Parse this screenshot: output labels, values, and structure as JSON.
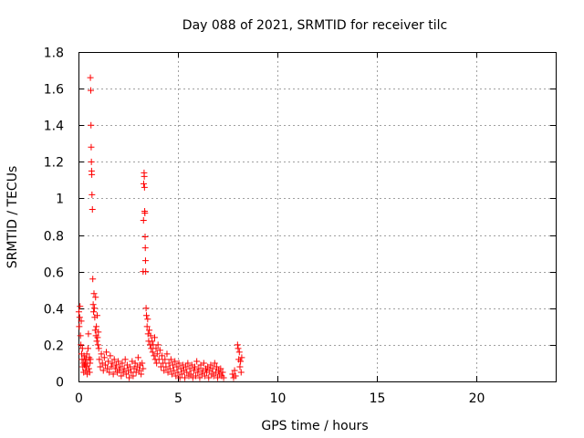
{
  "chart_data": {
    "type": "scatter",
    "title": "Day 088 of 2021, SRMTID for receiver tilc",
    "xlabel": "GPS time / hours",
    "ylabel": "SRMTID / TECUs",
    "xlim": [
      0,
      24
    ],
    "ylim": [
      0,
      1.8
    ],
    "xticks": [
      0,
      5,
      10,
      15,
      20
    ],
    "xtick_labels": [
      "0",
      "5",
      "10",
      "15",
      "20"
    ],
    "yticks": [
      0,
      0.2,
      0.4,
      0.6,
      0.8,
      1,
      1.2,
      1.4,
      1.6,
      1.8
    ],
    "ytick_labels": [
      "0",
      "0.2",
      "0.4",
      "0.6",
      "0.8",
      "1",
      "1.2",
      "1.4",
      "1.6",
      "1.8"
    ],
    "grid": true,
    "marker": "+",
    "series": [
      {
        "name": "tilc",
        "color": "#ff0000",
        "points": [
          [
            0.02,
            0.38
          ],
          [
            0.04,
            0.3
          ],
          [
            0.06,
            0.35
          ],
          [
            0.08,
            0.41
          ],
          [
            0.1,
            0.25
          ],
          [
            0.12,
            0.2
          ],
          [
            0.14,
            0.33
          ],
          [
            0.16,
            0.15
          ],
          [
            0.18,
            0.12
          ],
          [
            0.2,
            0.18
          ],
          [
            0.22,
            0.08
          ],
          [
            0.24,
            0.1
          ],
          [
            0.26,
            0.05
          ],
          [
            0.28,
            0.14
          ],
          [
            0.3,
            0.09
          ],
          [
            0.32,
            0.12
          ],
          [
            0.34,
            0.1
          ],
          [
            0.36,
            0.06
          ],
          [
            0.38,
            0.12
          ],
          [
            0.4,
            0.08
          ],
          [
            0.42,
            0.15
          ],
          [
            0.44,
            0.04
          ],
          [
            0.46,
            0.1
          ],
          [
            0.48,
            0.18
          ],
          [
            0.5,
            0.26
          ],
          [
            0.52,
            0.07
          ],
          [
            0.54,
            0.13
          ],
          [
            0.56,
            0.05
          ],
          [
            0.58,
            0.1
          ],
          [
            0.6,
            0.12
          ],
          [
            0.6,
            1.66
          ],
          [
            0.62,
            1.59
          ],
          [
            0.63,
            1.4
          ],
          [
            0.64,
            1.28
          ],
          [
            0.65,
            1.2
          ],
          [
            0.66,
            1.15
          ],
          [
            0.67,
            1.13
          ],
          [
            0.68,
            1.02
          ],
          [
            0.7,
            0.94
          ],
          [
            0.72,
            0.56
          ],
          [
            0.74,
            0.42
          ],
          [
            0.76,
            0.38
          ],
          [
            0.78,
            0.48
          ],
          [
            0.8,
            0.4
          ],
          [
            0.82,
            0.35
          ],
          [
            0.84,
            0.28
          ],
          [
            0.86,
            0.46
          ],
          [
            0.88,
            0.25
          ],
          [
            0.9,
            0.3
          ],
          [
            0.92,
            0.22
          ],
          [
            0.94,
            0.36
          ],
          [
            0.96,
            0.24
          ],
          [
            0.98,
            0.2
          ],
          [
            1.0,
            0.27
          ],
          [
            1.02,
            0.18
          ],
          [
            1.05,
            0.12
          ],
          [
            1.1,
            0.08
          ],
          [
            1.15,
            0.15
          ],
          [
            1.2,
            0.1
          ],
          [
            1.25,
            0.06
          ],
          [
            1.3,
            0.13
          ],
          [
            1.35,
            0.09
          ],
          [
            1.4,
            0.16
          ],
          [
            1.45,
            0.07
          ],
          [
            1.5,
            0.11
          ],
          [
            1.55,
            0.05
          ],
          [
            1.6,
            0.14
          ],
          [
            1.65,
            0.08
          ],
          [
            1.7,
            0.1
          ],
          [
            1.75,
            0.04
          ],
          [
            1.8,
            0.12
          ],
          [
            1.85,
            0.07
          ],
          [
            1.9,
            0.09
          ],
          [
            1.95,
            0.05
          ],
          [
            2.0,
            0.11
          ],
          [
            2.05,
            0.06
          ],
          [
            2.1,
            0.08
          ],
          [
            2.15,
            0.03
          ],
          [
            2.2,
            0.1
          ],
          [
            2.25,
            0.05
          ],
          [
            2.3,
            0.07
          ],
          [
            2.35,
            0.12
          ],
          [
            2.4,
            0.04
          ],
          [
            2.45,
            0.09
          ],
          [
            2.5,
            0.06
          ],
          [
            2.55,
            0.02
          ],
          [
            2.6,
            0.08
          ],
          [
            2.65,
            0.05
          ],
          [
            2.7,
            0.11
          ],
          [
            2.75,
            0.03
          ],
          [
            2.8,
            0.07
          ],
          [
            2.85,
            0.1
          ],
          [
            2.9,
            0.05
          ],
          [
            2.95,
            0.08
          ],
          [
            3.0,
            0.13
          ],
          [
            3.05,
            0.06
          ],
          [
            3.1,
            0.09
          ],
          [
            3.15,
            0.04
          ],
          [
            3.2,
            0.1
          ],
          [
            3.25,
            0.07
          ],
          [
            3.25,
            0.6
          ],
          [
            3.27,
            0.88
          ],
          [
            3.28,
            1.08
          ],
          [
            3.3,
            1.14
          ],
          [
            3.31,
            1.12
          ],
          [
            3.32,
            1.06
          ],
          [
            3.33,
            0.93
          ],
          [
            3.34,
            0.92
          ],
          [
            3.35,
            0.79
          ],
          [
            3.36,
            0.73
          ],
          [
            3.37,
            0.66
          ],
          [
            3.38,
            0.6
          ],
          [
            3.4,
            0.4
          ],
          [
            3.42,
            0.36
          ],
          [
            3.45,
            0.3
          ],
          [
            3.48,
            0.34
          ],
          [
            3.5,
            0.26
          ],
          [
            3.53,
            0.22
          ],
          [
            3.56,
            0.28
          ],
          [
            3.6,
            0.2
          ],
          [
            3.63,
            0.25
          ],
          [
            3.66,
            0.18
          ],
          [
            3.7,
            0.22
          ],
          [
            3.73,
            0.16
          ],
          [
            3.76,
            0.2
          ],
          [
            3.8,
            0.14
          ],
          [
            3.83,
            0.24
          ],
          [
            3.86,
            0.12
          ],
          [
            3.9,
            0.18
          ],
          [
            3.93,
            0.1
          ],
          [
            3.96,
            0.15
          ],
          [
            4.0,
            0.2
          ],
          [
            4.05,
            0.12
          ],
          [
            4.1,
            0.17
          ],
          [
            4.15,
            0.08
          ],
          [
            4.2,
            0.14
          ],
          [
            4.25,
            0.1
          ],
          [
            4.3,
            0.06
          ],
          [
            4.35,
            0.12
          ],
          [
            4.4,
            0.08
          ],
          [
            4.45,
            0.15
          ],
          [
            4.5,
            0.05
          ],
          [
            4.55,
            0.1
          ],
          [
            4.6,
            0.07
          ],
          [
            4.65,
            0.12
          ],
          [
            4.7,
            0.04
          ],
          [
            4.75,
            0.09
          ],
          [
            4.8,
            0.06
          ],
          [
            4.85,
            0.11
          ],
          [
            4.9,
            0.03
          ],
          [
            4.95,
            0.08
          ],
          [
            5.0,
            0.05
          ],
          [
            5.05,
            0.1
          ],
          [
            5.1,
            0.02
          ],
          [
            5.15,
            0.07
          ],
          [
            5.2,
            0.04
          ],
          [
            5.25,
            0.09
          ],
          [
            5.3,
            0.06
          ],
          [
            5.35,
            0.02
          ],
          [
            5.4,
            0.08
          ],
          [
            5.45,
            0.05
          ],
          [
            5.5,
            0.1
          ],
          [
            5.55,
            0.03
          ],
          [
            5.6,
            0.07
          ],
          [
            5.65,
            0.04
          ],
          [
            5.7,
            0.09
          ],
          [
            5.75,
            0.02
          ],
          [
            5.8,
            0.06
          ],
          [
            5.85,
            0.08
          ],
          [
            5.9,
            0.03
          ],
          [
            5.95,
            0.11
          ],
          [
            6.0,
            0.05
          ],
          [
            6.05,
            0.07
          ],
          [
            6.1,
            0.02
          ],
          [
            6.15,
            0.09
          ],
          [
            6.2,
            0.04
          ],
          [
            6.25,
            0.06
          ],
          [
            6.3,
            0.1
          ],
          [
            6.35,
            0.03
          ],
          [
            6.4,
            0.07
          ],
          [
            6.45,
            0.05
          ],
          [
            6.5,
            0.08
          ],
          [
            6.55,
            0.02
          ],
          [
            6.6,
            0.06
          ],
          [
            6.65,
            0.09
          ],
          [
            6.7,
            0.04
          ],
          [
            6.75,
            0.07
          ],
          [
            6.8,
            0.03
          ],
          [
            6.85,
            0.1
          ],
          [
            6.9,
            0.05
          ],
          [
            6.95,
            0.08
          ],
          [
            7.0,
            0.02
          ],
          [
            7.05,
            0.06
          ],
          [
            7.1,
            0.04
          ],
          [
            7.15,
            0.07
          ],
          [
            7.2,
            0.03
          ],
          [
            7.25,
            0.05
          ],
          [
            7.3,
            0.02
          ],
          [
            7.75,
            0.04
          ],
          [
            7.8,
            0.02
          ],
          [
            7.85,
            0.06
          ],
          [
            7.9,
            0.03
          ],
          [
            8.0,
            0.2
          ],
          [
            8.03,
            0.18
          ],
          [
            8.06,
            0.12
          ],
          [
            8.09,
            0.16
          ],
          [
            8.12,
            0.08
          ],
          [
            8.15,
            0.11
          ],
          [
            8.18,
            0.05
          ],
          [
            8.21,
            0.13
          ]
        ]
      }
    ]
  }
}
